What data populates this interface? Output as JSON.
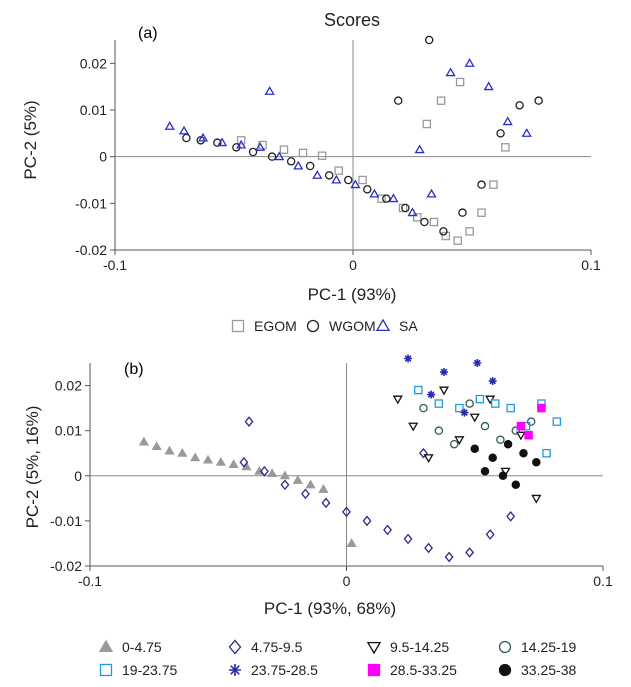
{
  "chart_data": [
    {
      "type": "scatter",
      "panel": "(a)",
      "title": "Scores",
      "xlabel": "PC-1 (93%)",
      "ylabel": "PC-2 (5%)",
      "xlim": [
        -0.1,
        0.1
      ],
      "ylim": [
        -0.02,
        0.025
      ],
      "xticks": [
        -0.1,
        0,
        0.1
      ],
      "xtick_labels": [
        "-0.1",
        "0",
        "0.1"
      ],
      "yticks": [
        -0.02,
        -0.01,
        0,
        0.01,
        0.02
      ],
      "ytick_labels": [
        "-0.02",
        "-0.01",
        "0",
        "0.01",
        "0.02"
      ],
      "grid": false,
      "legend_position": "bottom",
      "series": [
        {
          "name": "EGOM",
          "marker": "square-open",
          "color": "#9a9a9a",
          "x": [
            -0.047,
            -0.038,
            -0.029,
            -0.021,
            -0.013,
            -0.006,
            0.004,
            0.012,
            0.021,
            0.027,
            0.034,
            0.039,
            0.044,
            0.049,
            0.054,
            0.059,
            0.064,
            0.031,
            0.037,
            0.045
          ],
          "y": [
            0.0035,
            0.0025,
            0.0015,
            0.0008,
            0.0002,
            -0.003,
            -0.005,
            -0.009,
            -0.011,
            -0.013,
            -0.014,
            -0.017,
            -0.018,
            -0.016,
            -0.012,
            -0.006,
            0.002,
            0.007,
            0.012,
            0.016
          ]
        },
        {
          "name": "WGOM",
          "marker": "circle-open",
          "color": "#222222",
          "x": [
            -0.07,
            -0.064,
            -0.057,
            -0.049,
            -0.042,
            -0.034,
            -0.026,
            -0.018,
            -0.01,
            -0.002,
            0.006,
            0.014,
            0.022,
            0.03,
            0.038,
            0.046,
            0.054,
            0.062,
            0.07,
            0.078,
            0.019,
            0.032
          ],
          "y": [
            0.004,
            0.0035,
            0.003,
            0.002,
            0.001,
            0.0,
            -0.001,
            -0.002,
            -0.004,
            -0.005,
            -0.007,
            -0.009,
            -0.011,
            -0.014,
            -0.016,
            -0.012,
            -0.006,
            0.005,
            0.011,
            0.012,
            0.012,
            0.025
          ]
        },
        {
          "name": "SA",
          "marker": "triangle-open",
          "color": "#2c2ccf",
          "x": [
            -0.077,
            -0.071,
            -0.063,
            -0.055,
            -0.047,
            -0.039,
            -0.031,
            -0.023,
            -0.015,
            -0.007,
            0.001,
            0.009,
            0.017,
            0.025,
            0.033,
            0.041,
            0.049,
            0.057,
            0.065,
            0.073,
            -0.035,
            0.028
          ],
          "y": [
            0.0065,
            0.0055,
            0.004,
            0.003,
            0.0025,
            0.002,
            0.0,
            -0.002,
            -0.004,
            -0.005,
            -0.006,
            -0.008,
            -0.009,
            -0.012,
            -0.008,
            0.018,
            0.02,
            0.015,
            0.0075,
            0.005,
            0.014,
            0.0015
          ]
        }
      ]
    },
    {
      "type": "scatter",
      "panel": "(b)",
      "xlabel": "PC-1 (93%, 68%)",
      "ylabel": "PC-2 (5%, 16%)",
      "xlim": [
        -0.1,
        0.1
      ],
      "ylim": [
        -0.02,
        0.025
      ],
      "xticks": [
        -0.1,
        0,
        0.1
      ],
      "xtick_labels": [
        "-0.1",
        "0",
        "0.1"
      ],
      "yticks": [
        -0.02,
        -0.01,
        0,
        0.01,
        0.02
      ],
      "ytick_labels": [
        "-0.02",
        "-0.01",
        "0",
        "0.01",
        "0.02"
      ],
      "grid": false,
      "legend_position": "bottom",
      "series": [
        {
          "name": "0-4.75",
          "marker": "triangle-filled",
          "color": "#9a9a9a",
          "x": [
            -0.079,
            -0.074,
            -0.069,
            -0.064,
            -0.059,
            -0.054,
            -0.049,
            -0.044,
            -0.039,
            -0.034,
            -0.029,
            -0.024,
            -0.019,
            -0.014,
            -0.009,
            0.002
          ],
          "y": [
            0.0075,
            0.0065,
            0.0055,
            0.005,
            0.004,
            0.0035,
            0.003,
            0.0025,
            0.002,
            0.001,
            0.0005,
            0.0,
            -0.001,
            -0.002,
            -0.003,
            -0.015
          ]
        },
        {
          "name": "4.75-9.5",
          "marker": "diamond-open",
          "color": "#2a2a8c",
          "x": [
            -0.04,
            -0.032,
            -0.024,
            -0.016,
            -0.008,
            0.0,
            0.008,
            0.016,
            0.024,
            0.032,
            0.04,
            0.048,
            0.056,
            0.064,
            -0.038,
            0.03
          ],
          "y": [
            0.003,
            0.001,
            -0.002,
            -0.004,
            -0.006,
            -0.008,
            -0.01,
            -0.012,
            -0.014,
            -0.016,
            -0.018,
            -0.017,
            -0.013,
            -0.009,
            0.012,
            0.005
          ]
        },
        {
          "name": "9.5-14.25",
          "marker": "triangle-down-open",
          "color": "#111111",
          "x": [
            0.02,
            0.026,
            0.032,
            0.038,
            0.044,
            0.05,
            0.056,
            0.062,
            0.068,
            0.074
          ],
          "y": [
            0.017,
            0.011,
            0.004,
            0.019,
            0.008,
            0.013,
            0.017,
            0.001,
            0.009,
            -0.005
          ]
        },
        {
          "name": "14.25-19",
          "marker": "circle-open",
          "color": "#2e5e5a",
          "x": [
            0.03,
            0.036,
            0.042,
            0.048,
            0.054,
            0.06,
            0.066,
            0.072
          ],
          "y": [
            0.015,
            0.01,
            0.007,
            0.016,
            0.011,
            0.008,
            0.01,
            0.012
          ]
        },
        {
          "name": "19-23.75",
          "marker": "square-open",
          "color": "#1e9be0",
          "x": [
            0.028,
            0.036,
            0.044,
            0.052,
            0.058,
            0.064,
            0.07,
            0.076,
            0.082,
            0.078
          ],
          "y": [
            0.019,
            0.016,
            0.015,
            0.017,
            0.016,
            0.015,
            0.011,
            0.016,
            0.012,
            0.005
          ]
        },
        {
          "name": "23.75-28.5",
          "marker": "asterisk",
          "color": "#2a2ab0",
          "x": [
            0.024,
            0.038,
            0.051,
            0.057,
            0.033,
            0.046
          ],
          "y": [
            0.026,
            0.023,
            0.025,
            0.021,
            0.018,
            0.014
          ]
        },
        {
          "name": "28.5-33.25",
          "marker": "square-filled",
          "color": "#ff00ff",
          "x": [
            0.068,
            0.076,
            0.071
          ],
          "y": [
            0.011,
            0.015,
            0.009
          ]
        },
        {
          "name": "33.25-38",
          "marker": "circle-filled",
          "color": "#111111",
          "x": [
            0.05,
            0.057,
            0.063,
            0.069,
            0.074,
            0.054,
            0.061,
            0.066
          ],
          "y": [
            0.006,
            0.004,
            0.007,
            0.005,
            0.003,
            0.001,
            0.0,
            -0.002
          ]
        }
      ]
    }
  ]
}
